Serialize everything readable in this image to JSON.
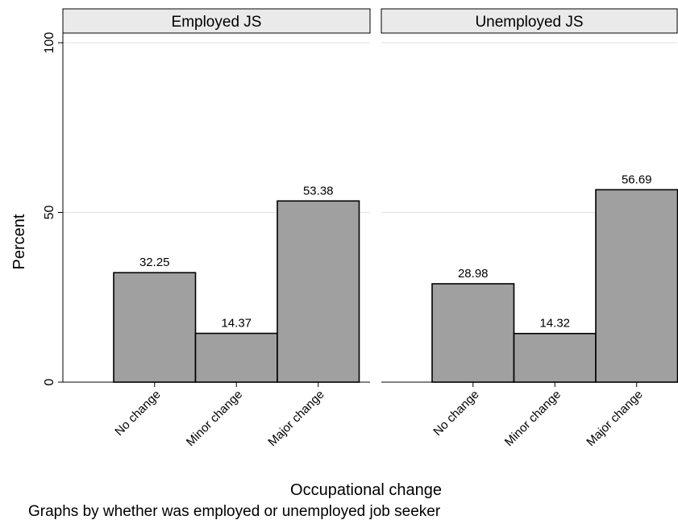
{
  "chart_data": {
    "type": "bar",
    "ylabel": "Percent",
    "xlabel": "Occupational change",
    "note": "Graphs by whether was employed or unemployed job seeker",
    "ylim": [
      0,
      100
    ],
    "yticks": [
      0,
      50,
      100
    ],
    "grid": true,
    "categories": [
      "No change",
      "Minor change",
      "Major change"
    ],
    "panels": [
      {
        "title": "Employed JS",
        "values": [
          32.25,
          14.37,
          53.38
        ]
      },
      {
        "title": "Unemployed JS",
        "values": [
          28.98,
          14.32,
          56.69
        ]
      }
    ]
  },
  "colors": {
    "bar_fill": "#a0a0a0",
    "bar_stroke": "#000000",
    "header_fill": "#eaeaea",
    "grid": "#e6e6e6"
  }
}
